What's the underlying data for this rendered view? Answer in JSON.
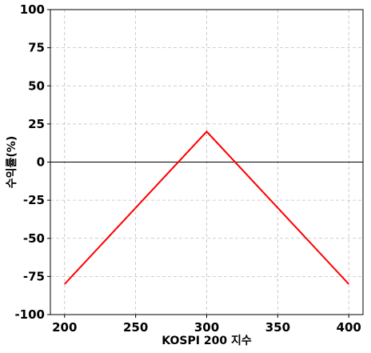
{
  "chart_data": {
    "type": "line",
    "title": "",
    "xlabel": "KOSPI 200 지수",
    "ylabel": "수익률(%)",
    "xlim": [
      190,
      410
    ],
    "ylim": [
      -100,
      100
    ],
    "xticks": [
      200,
      250,
      300,
      350,
      400
    ],
    "yticks": [
      100,
      75,
      50,
      25,
      0,
      -25,
      -50,
      -75,
      -100
    ],
    "grid": true,
    "grid_style": "dashed",
    "zero_line": true,
    "series": [
      {
        "color": "#ff0000",
        "x": [
          200,
          300,
          400
        ],
        "y": [
          -80,
          20,
          -80
        ]
      }
    ]
  }
}
